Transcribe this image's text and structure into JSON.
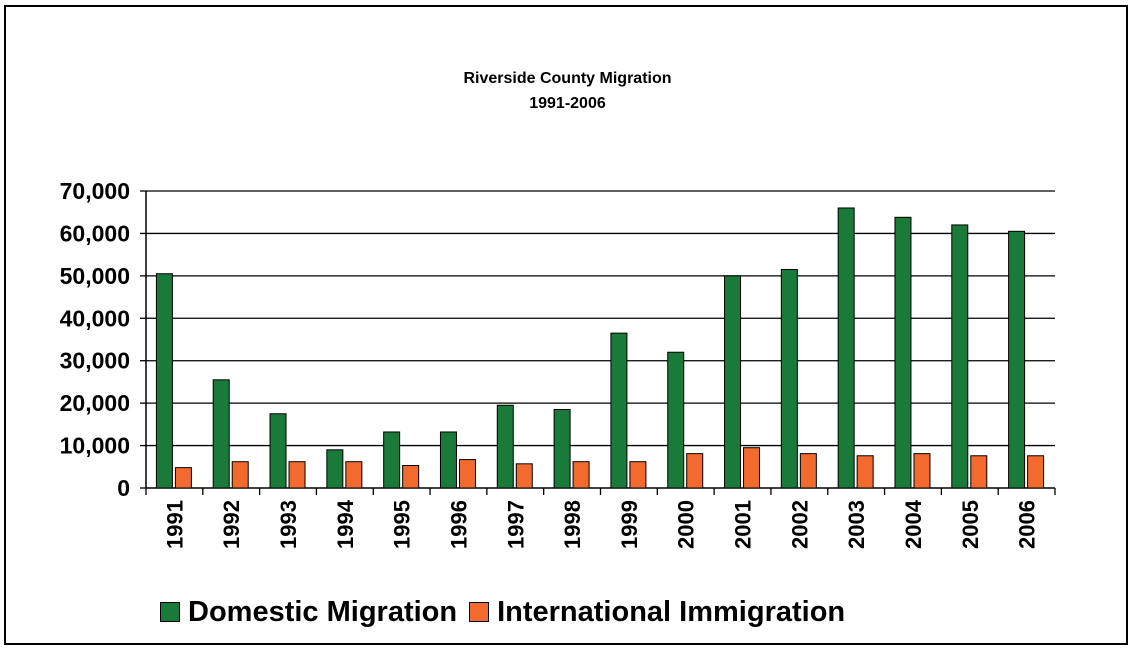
{
  "chart_data": {
    "type": "bar",
    "title": "Riverside County Migration",
    "subtitle": "1991-2006",
    "categories": [
      "1991",
      "1992",
      "1993",
      "1994",
      "1995",
      "1996",
      "1997",
      "1998",
      "1999",
      "2000",
      "2001",
      "2002",
      "2003",
      "2004",
      "2005",
      "2006"
    ],
    "series": [
      {
        "name": "Domestic Migration",
        "color": "#1a7a3a",
        "values": [
          50500,
          25500,
          17500,
          9000,
          13200,
          13200,
          19500,
          18500,
          36500,
          32000,
          50000,
          51500,
          66000,
          63800,
          62000,
          60500
        ]
      },
      {
        "name": "International Immigration",
        "color": "#f26a2e",
        "values": [
          4800,
          6200,
          6200,
          6200,
          5300,
          6700,
          5700,
          6200,
          6200,
          8100,
          9500,
          8100,
          7600,
          8100,
          7600,
          7600
        ]
      }
    ],
    "ylim": [
      0,
      70000
    ],
    "yticks": [
      "0",
      "10,000",
      "20,000",
      "30,000",
      "40,000",
      "50,000",
      "60,000",
      "70,000"
    ],
    "grid": true,
    "legend": "bottom"
  }
}
